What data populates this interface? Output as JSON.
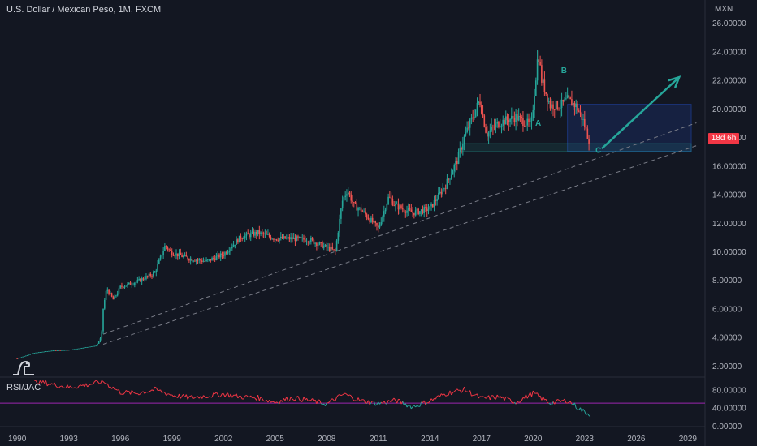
{
  "header": {
    "title": "U.S. Dollar / Mexican Peso, 1M, FXCM",
    "currency": "MXN"
  },
  "rsi": {
    "label": "RSI/JAC"
  },
  "last_tag": "18d 6h",
  "wave_labels": {
    "a": "A",
    "b": "B",
    "c": "C"
  },
  "colors": {
    "background": "#131722",
    "up": "#26a69a",
    "down": "#ef5350",
    "arrow": "#26a69a",
    "rsi_line_upper": "#f23645",
    "rsi_line_lower": "#26a69a",
    "rsi_level": "#9c27b0"
  },
  "chart_data": [
    {
      "type": "candlestick",
      "title": "U.S. Dollar / Mexican Peso, 1M, FXCM",
      "ylabel": "MXN",
      "ylim": [
        1.2,
        27.6
      ],
      "yticks": [
        "2.00000",
        "4.00000",
        "6.00000",
        "8.00000",
        "10.00000",
        "12.00000",
        "14.00000",
        "16.00000",
        "18.00000",
        "20.00000",
        "22.00000",
        "24.00000",
        "26.00000"
      ],
      "xlim": [
        1989.0,
        2030.0
      ],
      "xticks": [
        "1990",
        "1993",
        "1996",
        "1999",
        "2002",
        "2005",
        "2008",
        "2011",
        "2014",
        "2017",
        "2020",
        "2023",
        "2026",
        "2029"
      ],
      "series": [
        {
          "values": [
            [
              1990.0,
              2.5
            ],
            [
              1991.0,
              2.9
            ],
            [
              1992.0,
              3.05
            ],
            [
              1993.0,
              3.1
            ],
            [
              1994.6,
              3.4
            ],
            [
              1994.9,
              4.0
            ],
            [
              1995.0,
              6.0
            ],
            [
              1995.2,
              7.4
            ],
            [
              1995.6,
              6.6
            ],
            [
              1996.0,
              7.5
            ],
            [
              1997.0,
              7.9
            ],
            [
              1998.0,
              8.5
            ],
            [
              1998.6,
              10.4
            ],
            [
              1999.0,
              9.9
            ],
            [
              2000.0,
              9.5
            ],
            [
              2001.0,
              9.3
            ],
            [
              2002.0,
              9.8
            ],
            [
              2003.0,
              11.0
            ],
            [
              2004.0,
              11.3
            ],
            [
              2005.0,
              10.9
            ],
            [
              2006.0,
              10.9
            ],
            [
              2007.0,
              10.8
            ],
            [
              2008.5,
              10.0
            ],
            [
              2008.9,
              13.5
            ],
            [
              2009.2,
              14.3
            ],
            [
              2009.6,
              13.2
            ],
            [
              2010.0,
              12.9
            ],
            [
              2011.0,
              11.6
            ],
            [
              2011.6,
              13.8
            ],
            [
              2012.0,
              13.2
            ],
            [
              2013.0,
              12.7
            ],
            [
              2014.0,
              13.0
            ],
            [
              2014.9,
              14.6
            ],
            [
              2015.6,
              16.4
            ],
            [
              2016.0,
              18.0
            ],
            [
              2016.9,
              20.6
            ],
            [
              2017.3,
              18.2
            ],
            [
              2018.0,
              19.0
            ],
            [
              2019.0,
              19.4
            ],
            [
              2019.9,
              18.8
            ],
            [
              2020.3,
              24.0
            ],
            [
              2020.5,
              22.0
            ],
            [
              2021.0,
              20.2
            ],
            [
              2021.6,
              20.2
            ],
            [
              2022.0,
              20.6
            ],
            [
              2022.5,
              20.2
            ],
            [
              2022.9,
              19.2
            ],
            [
              2023.3,
              17.6
            ]
          ]
        }
      ],
      "annotations": [
        {
          "text": "A",
          "x": 2020.3,
          "y": 18.8
        },
        {
          "text": "B",
          "x": 2021.8,
          "y": 22.5
        },
        {
          "text": "C",
          "x": 2023.8,
          "y": 16.9
        }
      ]
    },
    {
      "type": "line",
      "title": "RSI/JAC",
      "ylim": [
        -2,
        106
      ],
      "yticks": [
        "0.00000",
        "40.00000",
        "80.00000"
      ],
      "levels": [
        50
      ],
      "series": [
        {
          "values": [
            [
              1991,
              100
            ],
            [
              1992,
              92
            ],
            [
              1993,
              85
            ],
            [
              1994,
              90
            ],
            [
              1995,
              98
            ],
            [
              1996,
              74
            ],
            [
              1997,
              72
            ],
            [
              1998,
              80
            ],
            [
              1999,
              68
            ],
            [
              2000,
              62
            ],
            [
              2001,
              66
            ],
            [
              2002,
              70
            ],
            [
              2003,
              64
            ],
            [
              2004,
              62
            ],
            [
              2005,
              52
            ],
            [
              2006,
              62
            ],
            [
              2007,
              56
            ],
            [
              2008,
              48
            ],
            [
              2009,
              70
            ],
            [
              2010,
              55
            ],
            [
              2011,
              49
            ],
            [
              2012,
              56
            ],
            [
              2013,
              42
            ],
            [
              2014,
              55
            ],
            [
              2015,
              72
            ],
            [
              2016,
              80
            ],
            [
              2017,
              60
            ],
            [
              2018,
              64
            ],
            [
              2019,
              52
            ],
            [
              2020,
              72
            ],
            [
              2021,
              50
            ],
            [
              2022,
              56
            ],
            [
              2023,
              30
            ],
            [
              2023.4,
              24
            ]
          ]
        }
      ]
    }
  ]
}
